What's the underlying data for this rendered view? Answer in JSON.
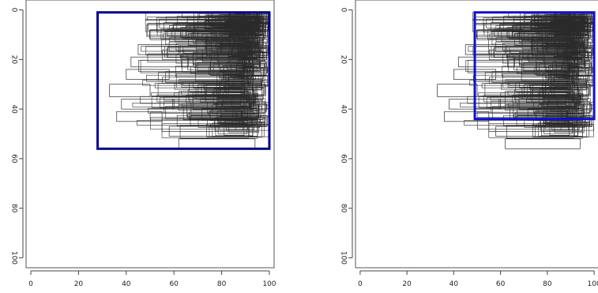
{
  "chart_data": [
    {
      "type": "scatter",
      "title": "",
      "xlabel": "",
      "ylabel": "",
      "xlim": [
        -2,
        102
      ],
      "ylim": [
        104,
        -4
      ],
      "y_axis_reversed": true,
      "grid": false,
      "legend": "none",
      "x_ticks": [
        "0",
        "20",
        "40",
        "60",
        "80",
        "100"
      ],
      "y_ticks": [
        "0",
        "20",
        "40",
        "60",
        "80",
        "100"
      ],
      "rectangle_outline_color": "#2b2b2b",
      "highlight_color": "#00008b",
      "highlight_box": {
        "x0": 28,
        "x1": 100,
        "y0": 1,
        "y1": 56
      },
      "sample_rectangles_right_edge_range": [
        88,
        100
      ],
      "sample_rectangles_y_range": [
        1,
        56
      ]
    },
    {
      "type": "scatter",
      "title": "",
      "xlabel": "",
      "ylabel": "",
      "xlim": [
        -2,
        102
      ],
      "ylim": [
        104,
        -4
      ],
      "y_axis_reversed": true,
      "grid": false,
      "legend": "none",
      "x_ticks": [
        "0",
        "20",
        "40",
        "60",
        "80",
        "100"
      ],
      "y_ticks": [
        "0",
        "20",
        "40",
        "60",
        "80",
        "100"
      ],
      "rectangle_outline_color": "#2b2b2b",
      "highlight_color": "#1010d0",
      "highlight_box": {
        "x0": 49,
        "x1": 100,
        "y0": 1,
        "y1": 44
      },
      "sample_rectangles_right_edge_range": [
        88,
        100
      ],
      "sample_rectangles_y_range": [
        1,
        56
      ]
    }
  ]
}
